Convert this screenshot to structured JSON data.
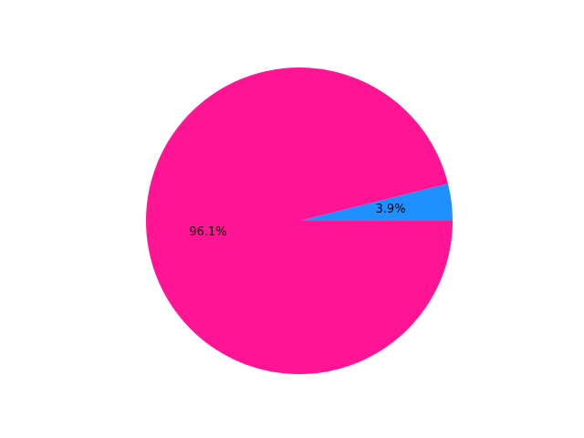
{
  "chart_data": {
    "type": "pie",
    "title": "",
    "slices": [
      {
        "value": 3.9,
        "label": "3.9%",
        "color": "#1e90ff"
      },
      {
        "value": 96.1,
        "label": "96.1%",
        "color": "#ff1493"
      }
    ],
    "start_angle_deg": 0,
    "direction": "counterclockwise",
    "legend": "none",
    "grid": false
  }
}
